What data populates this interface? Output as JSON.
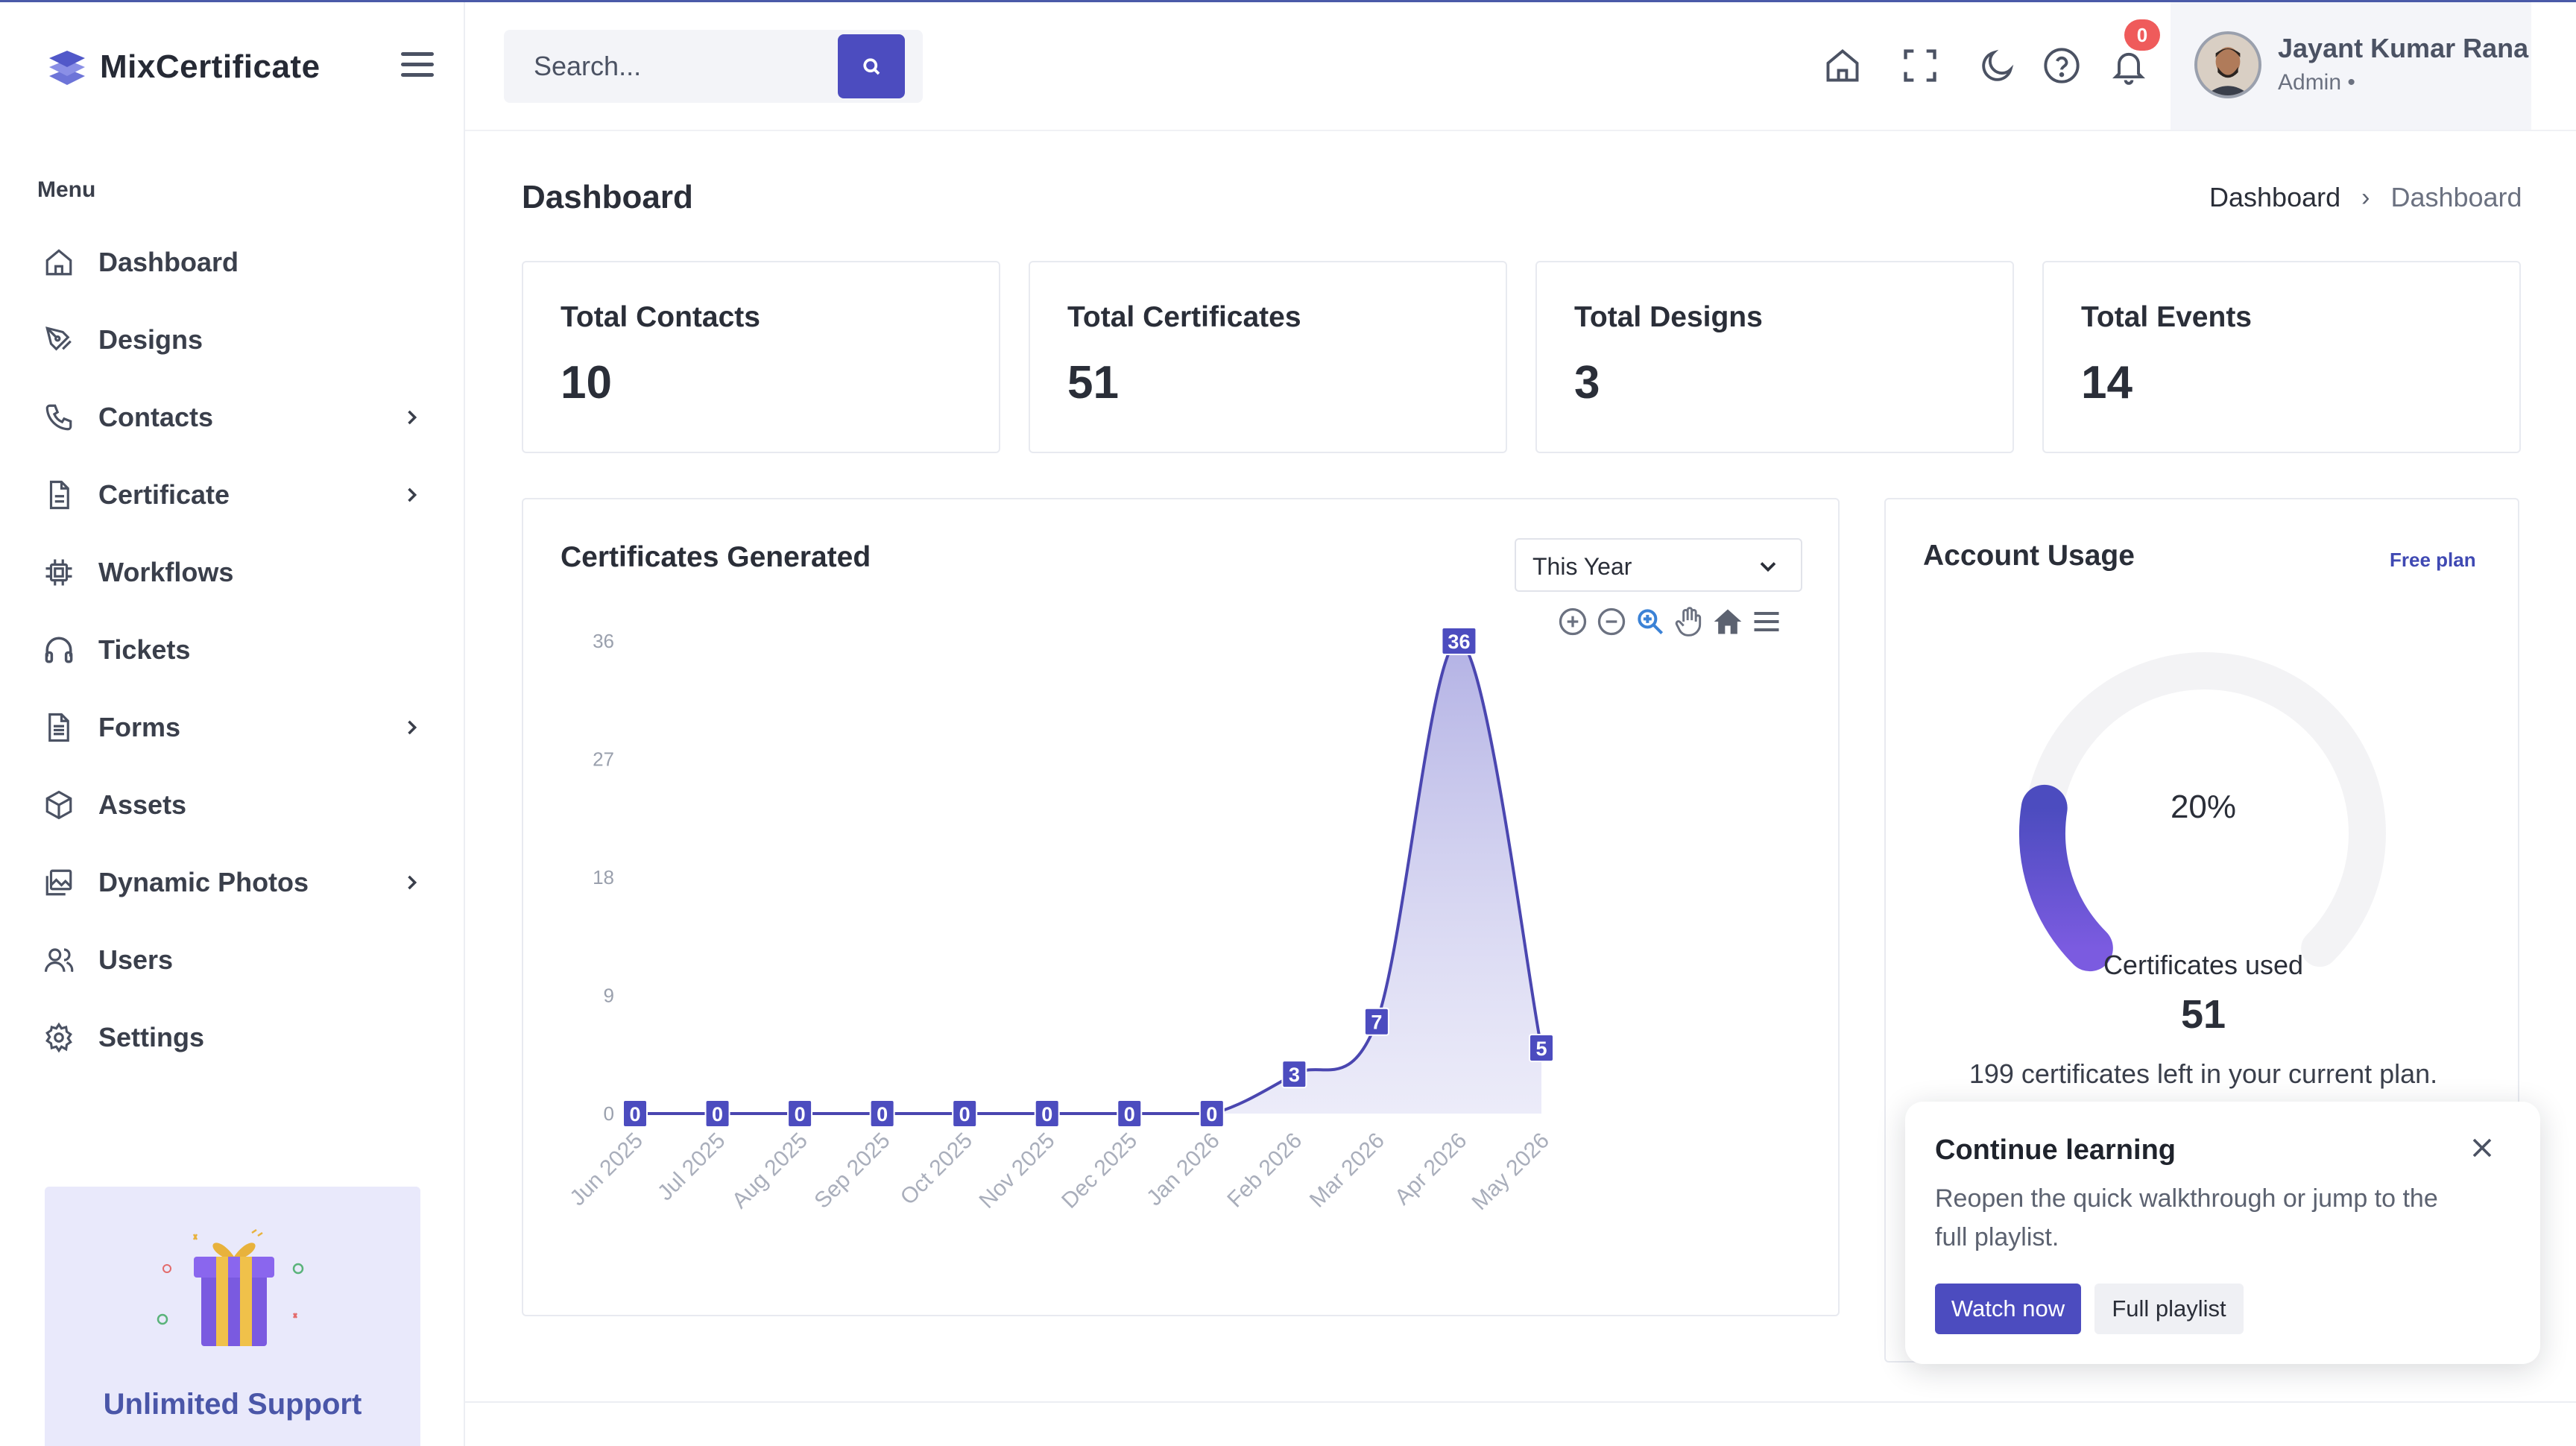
{
  "app": {
    "name": "MixCertificate"
  },
  "sidebar": {
    "menu_label": "Menu",
    "items": [
      {
        "label": "Dashboard",
        "icon": "home-icon",
        "has_children": false
      },
      {
        "label": "Designs",
        "icon": "pen-tool-icon",
        "has_children": false
      },
      {
        "label": "Contacts",
        "icon": "phone-icon",
        "has_children": true
      },
      {
        "label": "Certificate",
        "icon": "file-icon",
        "has_children": true
      },
      {
        "label": "Workflows",
        "icon": "cpu-icon",
        "has_children": false
      },
      {
        "label": "Tickets",
        "icon": "headphones-icon",
        "has_children": false
      },
      {
        "label": "Forms",
        "icon": "document-icon",
        "has_children": true
      },
      {
        "label": "Assets",
        "icon": "box-icon",
        "has_children": false
      },
      {
        "label": "Dynamic Photos",
        "icon": "images-icon",
        "has_children": true
      },
      {
        "label": "Users",
        "icon": "users-icon",
        "has_children": false
      },
      {
        "label": "Settings",
        "icon": "gear-icon",
        "has_children": false
      }
    ],
    "promo": {
      "title": "Unlimited Support"
    }
  },
  "header": {
    "search": {
      "placeholder": "Search...",
      "value": ""
    },
    "notifications_count": "0",
    "user": {
      "name": "Jayant Kumar Rana",
      "role": "Admin •"
    }
  },
  "page": {
    "title": "Dashboard",
    "breadcrumb": [
      "Dashboard",
      "Dashboard"
    ]
  },
  "stats": [
    {
      "label": "Total Contacts",
      "value": "10"
    },
    {
      "label": "Total Certificates",
      "value": "51"
    },
    {
      "label": "Total Designs",
      "value": "3"
    },
    {
      "label": "Total Events",
      "value": "14"
    }
  ],
  "chart": {
    "title": "Certificates Generated",
    "range_select": "This Year",
    "toolbar": [
      "zoom-in-icon",
      "zoom-out-icon",
      "selection-zoom-icon",
      "pan-hand-icon",
      "reset-home-icon",
      "menu-icon"
    ]
  },
  "chart_data": {
    "type": "area",
    "categories": [
      "Jun 2025",
      "Jul 2025",
      "Aug 2025",
      "Sep 2025",
      "Oct 2025",
      "Nov 2025",
      "Dec 2025",
      "Jan 2026",
      "Feb 2026",
      "Mar 2026",
      "Apr 2026",
      "May 2026"
    ],
    "series": [
      {
        "values": [
          0,
          0,
          0,
          0,
          0,
          0,
          0,
          0,
          3,
          7,
          36,
          5
        ]
      }
    ],
    "yticks": [
      "0",
      "9",
      "18",
      "27",
      "36"
    ],
    "ylim": [
      0,
      36
    ],
    "grid": false,
    "legend": "none"
  },
  "usage": {
    "title": "Account Usage",
    "plan": "Free plan",
    "percent": 20,
    "percent_label": "20%",
    "subtitle": "Certificates used",
    "used": "51",
    "left_text": "199 certificates left in your current plan."
  },
  "popup": {
    "title": "Continue learning",
    "body": "Reopen the quick walkthrough or jump to the full playlist.",
    "primary": "Watch now",
    "secondary": "Full playlist"
  },
  "colors": {
    "accent": "#4c4cbf",
    "line": "#4a46b0",
    "badge": "#ef5b5b",
    "promo_bg": "#e9e9fb"
  }
}
